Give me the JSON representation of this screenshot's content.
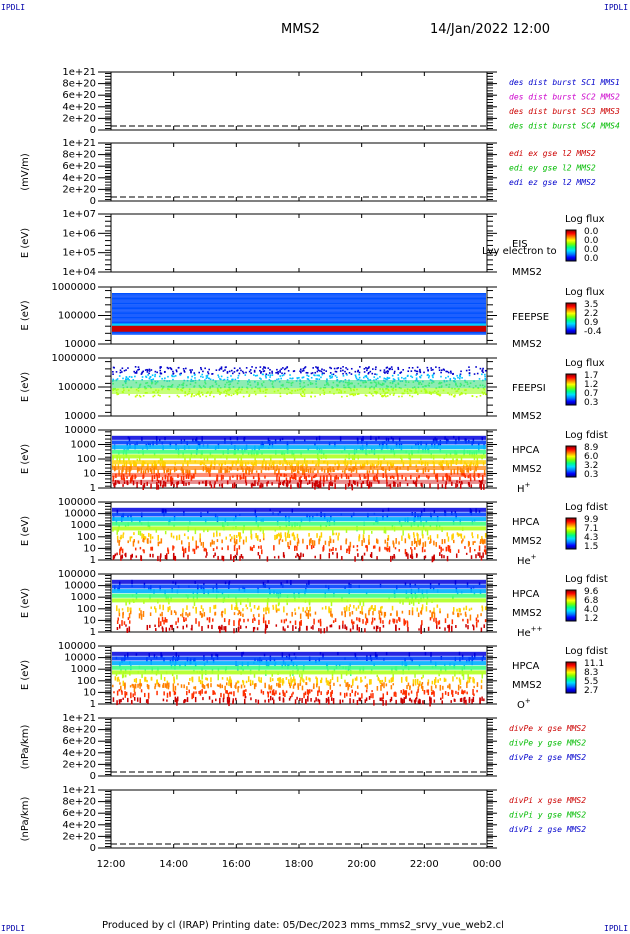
{
  "corner_labels": {
    "top_left": "IPDLI",
    "top_right": "IPDLI",
    "bottom_left": "IPDLI",
    "bottom_right": "IPDLI"
  },
  "title": "MMS2",
  "date": "14/Jan/2022 12:00",
  "footer": "Produced by cl (IRAP)    Printing date: 05/Dec/2023    mms_mms2_srvy_vue_web2.cl",
  "chart_data": [
    {
      "type": "line",
      "panel": "des-dist",
      "yticks": [
        "1e+21",
        "8e+20",
        "6e+20",
        "4e+20",
        "2e+20",
        "0"
      ],
      "ylabel": "",
      "legend": [
        {
          "text": "des dist burst SC1 MMS1",
          "color": "#0000cc"
        },
        {
          "text": "des dist burst SC2 MMS2",
          "color": "#cc00cc"
        },
        {
          "text": "des dist burst SC3 MMS3",
          "color": "#cc0000"
        },
        {
          "text": "des dist burst SC4 MMS4",
          "color": "#00bb00"
        }
      ],
      "series": [],
      "zero_line": true
    },
    {
      "type": "line",
      "panel": "edi-e",
      "yticks": [
        "1e+21",
        "8e+20",
        "6e+20",
        "4e+20",
        "2e+20",
        "0"
      ],
      "ylabel": "(mV/m)",
      "legend": [
        {
          "text": "edi ex gse l2 MMS2",
          "color": "#cc0000"
        },
        {
          "text": "edi ey gse l2 MMS2",
          "color": "#00bb00"
        },
        {
          "text": "edi ez gse l2 MMS2",
          "color": "#0000cc"
        }
      ],
      "series": [],
      "zero_line": true
    },
    {
      "type": "heatmap",
      "panel": "eis",
      "yticks": [
        "1e+07",
        "1e+06",
        "1e+05",
        "1e+04"
      ],
      "ylabel": "E (eV)",
      "instrument": [
        "EIS",
        "MMS2"
      ],
      "overlay_text": "Lvy electron to",
      "colorbar": {
        "title": "Log flux",
        "ticks": [
          "0.0",
          "0.0",
          "0.0",
          "0.0"
        ]
      },
      "band": "none"
    },
    {
      "type": "heatmap",
      "panel": "feeps-e",
      "yticks": [
        "1000000",
        "100000",
        "10000"
      ],
      "ylabel": "E (eV)",
      "instrument": [
        "FEEPSE",
        "MMS2"
      ],
      "colorbar": {
        "title": "Log flux",
        "ticks": [
          "3.5",
          "2.2",
          "0.9",
          "-0.4"
        ]
      },
      "band": "feeps-e"
    },
    {
      "type": "heatmap",
      "panel": "feeps-i",
      "yticks": [
        "1000000",
        "100000",
        "10000"
      ],
      "ylabel": "E (eV)",
      "instrument": [
        "FEEPSI",
        "MMS2"
      ],
      "colorbar": {
        "title": "Log flux",
        "ticks": [
          "1.7",
          "1.2",
          "0.7",
          "0.3"
        ]
      },
      "band": "feeps-i"
    },
    {
      "type": "heatmap",
      "panel": "hpca-h",
      "yticks": [
        "10000",
        "1000",
        "100",
        "10",
        "1"
      ],
      "ylabel": "E (eV)",
      "instrument": [
        "HPCA",
        "MMS2"
      ],
      "species": "H",
      "species_sup": "+",
      "colorbar": {
        "title": "Log fdist",
        "ticks": [
          "8.9",
          "6.0",
          "3.2",
          "0.3"
        ]
      },
      "band": "hpca-h"
    },
    {
      "type": "heatmap",
      "panel": "hpca-he",
      "yticks": [
        "100000",
        "10000",
        "1000",
        "100",
        "10",
        "1"
      ],
      "ylabel": "E (eV)",
      "instrument": [
        "HPCA",
        "MMS2"
      ],
      "species": "He",
      "species_sup": "+",
      "colorbar": {
        "title": "Log fdist",
        "ticks": [
          "9.9",
          "7.1",
          "4.3",
          "1.5"
        ]
      },
      "band": "hpca-he"
    },
    {
      "type": "heatmap",
      "panel": "hpca-hepp",
      "yticks": [
        "100000",
        "10000",
        "1000",
        "100",
        "10",
        "1"
      ],
      "ylabel": "E (eV)",
      "instrument": [
        "HPCA",
        "MMS2"
      ],
      "species": "He",
      "species_sup": "++",
      "colorbar": {
        "title": "Log fdist",
        "ticks": [
          "9.6",
          "6.8",
          "4.0",
          "1.2"
        ]
      },
      "band": "hpca-hepp"
    },
    {
      "type": "heatmap",
      "panel": "hpca-o",
      "yticks": [
        "100000",
        "10000",
        "1000",
        "100",
        "10",
        "1"
      ],
      "ylabel": "E (eV)",
      "instrument": [
        "HPCA",
        "MMS2"
      ],
      "species": "O",
      "species_sup": "+",
      "colorbar": {
        "title": "Log fdist",
        "ticks": [
          "11.1",
          "8.3",
          "5.5",
          "2.7"
        ]
      },
      "band": "hpca-o"
    },
    {
      "type": "line",
      "panel": "divpe",
      "yticks": [
        "1e+21",
        "8e+20",
        "6e+20",
        "4e+20",
        "2e+20",
        "0"
      ],
      "ylabel": "(nPa/km)",
      "legend": [
        {
          "text": "divPe x gse MMS2",
          "color": "#cc0000"
        },
        {
          "text": "divPe y gse MMS2",
          "color": "#00bb00"
        },
        {
          "text": "divPe z gse MMS2",
          "color": "#0000cc"
        }
      ],
      "series": [],
      "zero_line": true
    },
    {
      "type": "line",
      "panel": "divpi",
      "yticks": [
        "1e+21",
        "8e+20",
        "6e+20",
        "4e+20",
        "2e+20",
        "0"
      ],
      "ylabel": "(nPa/km)",
      "legend": [
        {
          "text": "divPi x gse MMS2",
          "color": "#cc0000"
        },
        {
          "text": "divPi y gse MMS2",
          "color": "#00bb00"
        },
        {
          "text": "divPi z gse MMS2",
          "color": "#0000cc"
        }
      ],
      "series": [],
      "zero_line": true
    }
  ],
  "xaxis": {
    "ticks": [
      "12:00",
      "14:00",
      "16:00",
      "18:00",
      "20:00",
      "22:00",
      "00:00"
    ]
  }
}
